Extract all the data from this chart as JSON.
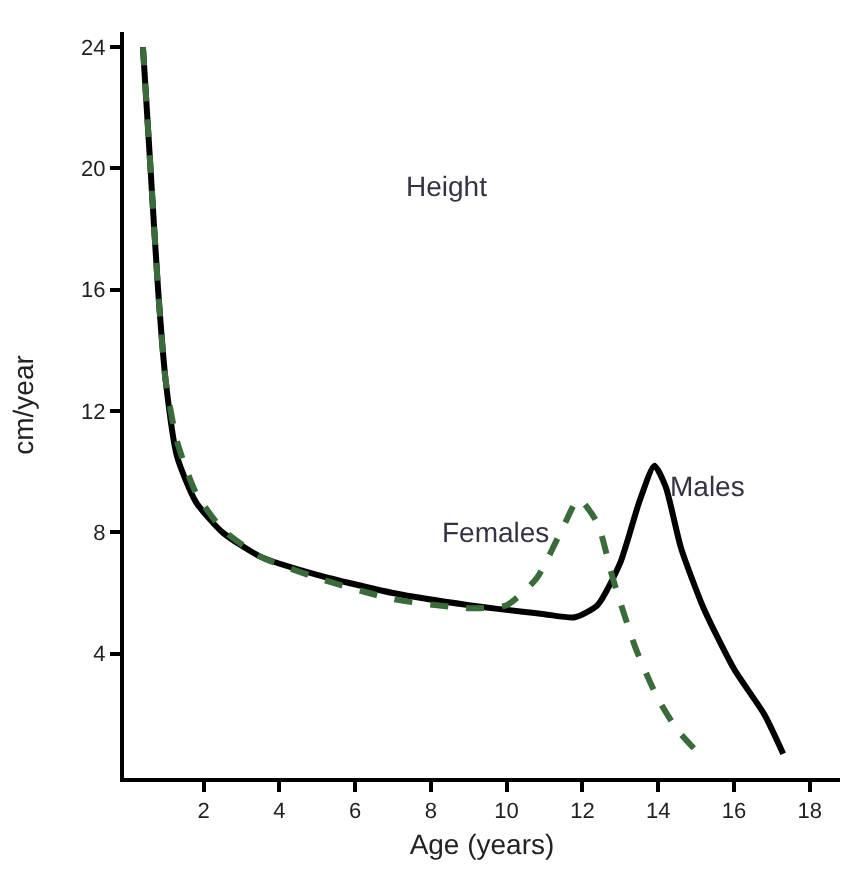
{
  "chart_data": {
    "type": "line",
    "xlabel": "Age (years)",
    "ylabel": "cm/year",
    "annotations": [
      "Height"
    ],
    "xlim": [
      -0.1,
      18.8
    ],
    "ylim": [
      -0.1,
      24.5
    ],
    "xticks": [
      2,
      4,
      6,
      8,
      10,
      12,
      14,
      16,
      18
    ],
    "yticks": [
      4,
      8,
      12,
      16,
      20,
      24
    ],
    "grid": false,
    "legend": false,
    "marker": "none",
    "series": [
      {
        "name": "Males",
        "color": "#000000",
        "line_style": "solid",
        "x": [
          0.4,
          0.6,
          0.8,
          1.0,
          1.3,
          1.8,
          2.5,
          3.5,
          5,
          7,
          9,
          11,
          11.8,
          12.4,
          13,
          13.5,
          13.9,
          14.2,
          14.6,
          15.2,
          16,
          16.8,
          17.3
        ],
        "values": [
          24,
          20,
          16,
          13,
          10.5,
          9,
          8,
          7.2,
          6.6,
          6,
          5.6,
          5.3,
          5.2,
          5.6,
          7,
          9,
          10.2,
          9.5,
          7.5,
          5.5,
          3.5,
          2,
          0.7
        ]
      },
      {
        "name": "Females",
        "color": "#3a6b3a",
        "line_style": "dashed",
        "x": [
          0.4,
          0.6,
          0.8,
          1.0,
          1.3,
          1.8,
          2.5,
          3.5,
          5,
          7,
          9,
          10,
          10.8,
          11.5,
          11.9,
          12.4,
          12.8,
          13.4,
          14,
          14.5,
          15
        ],
        "values": [
          24,
          20,
          16,
          13,
          11,
          9.3,
          8.1,
          7.2,
          6.5,
          5.8,
          5.5,
          5.6,
          6.5,
          8.2,
          9.1,
          8.3,
          6.5,
          4.2,
          2.5,
          1.5,
          0.8
        ]
      }
    ]
  }
}
